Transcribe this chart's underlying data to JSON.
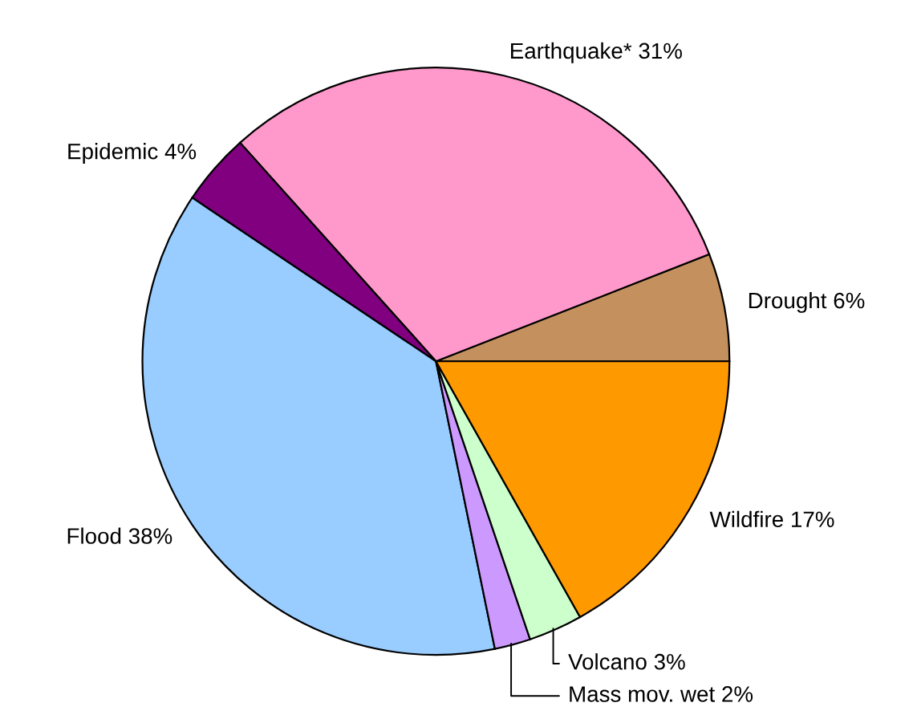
{
  "chart_data": {
    "type": "pie",
    "categories": [
      "Drought",
      "Earthquake*",
      "Epidemic",
      "Flood",
      "Mass mov. wet",
      "Volcano",
      "Wildfire"
    ],
    "values": [
      6,
      31,
      4,
      38,
      2,
      3,
      17
    ],
    "value_labels": [
      "6%",
      "31%",
      "4%",
      "38%",
      "2%",
      "3%",
      "17%"
    ],
    "colors": [
      "#c4905e",
      "#ff99cc",
      "#800080",
      "#99ccff",
      "#cc99ff",
      "#ccffcc",
      "#ff9900"
    ],
    "legend": false
  }
}
